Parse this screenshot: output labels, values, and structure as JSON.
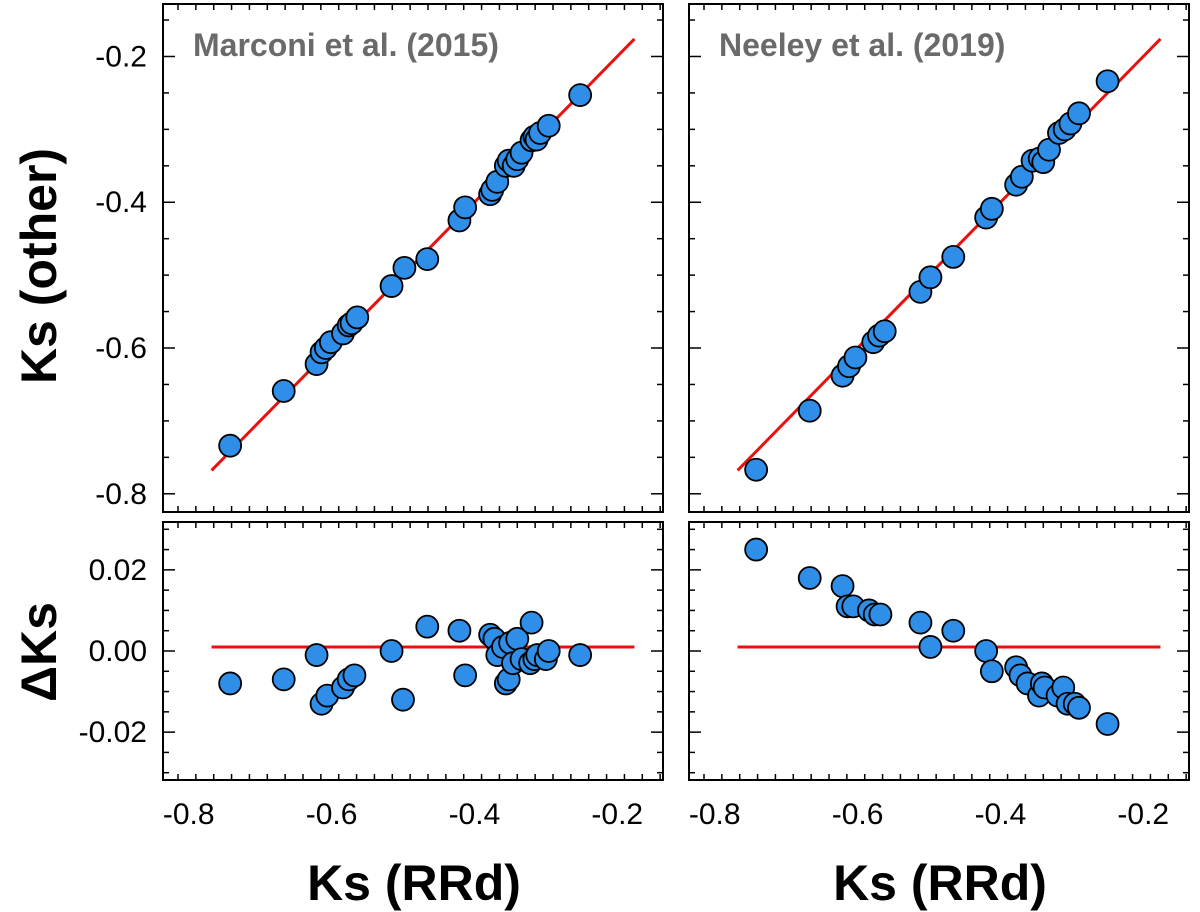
{
  "colors": {
    "point_fill": "#2f8ee8",
    "point_stroke": "#000000",
    "line": "#e8110f",
    "title_text": "#6a6a6a",
    "frame": "#000000"
  },
  "chart_data": [
    {
      "panel": "top-left",
      "type": "scatter",
      "title": "Marconi et al. (2015)",
      "xlabel": "",
      "ylabel": "Ks (other)",
      "xlim": [
        -0.836,
        -0.136
      ],
      "ylim": [
        -0.825,
        -0.128
      ],
      "yticks": [
        -0.8,
        -0.6,
        -0.4,
        -0.2
      ],
      "ytick_labels": [
        "-0.8",
        "-0.6",
        "-0.4",
        "-0.2"
      ],
      "line": {
        "x": [
          -0.768,
          -0.176
        ],
        "y": [
          -0.768,
          -0.176
        ]
      },
      "x": [
        -0.742,
        -0.667,
        -0.621,
        -0.614,
        -0.608,
        -0.601,
        -0.584,
        -0.576,
        -0.572,
        -0.564,
        -0.516,
        -0.498,
        -0.466,
        -0.421,
        -0.413,
        -0.378,
        -0.375,
        -0.368,
        -0.356,
        -0.352,
        -0.345,
        -0.34,
        -0.334,
        -0.32,
        -0.316,
        -0.313,
        -0.308,
        -0.296,
        -0.252
      ],
      "y": [
        -0.734,
        -0.659,
        -0.622,
        -0.606,
        -0.6,
        -0.592,
        -0.58,
        -0.569,
        -0.566,
        -0.558,
        -0.515,
        -0.49,
        -0.478,
        -0.425,
        -0.407,
        -0.389,
        -0.383,
        -0.372,
        -0.35,
        -0.343,
        -0.35,
        -0.341,
        -0.332,
        -0.315,
        -0.31,
        -0.314,
        -0.305,
        -0.295,
        -0.253
      ]
    },
    {
      "panel": "top-right",
      "type": "scatter",
      "title": "Neeley et al. (2019)",
      "xlabel": "",
      "ylabel": "",
      "xlim": [
        -0.836,
        -0.136
      ],
      "ylim": [
        -0.825,
        -0.128
      ],
      "yticks": [
        -0.8,
        -0.6,
        -0.4,
        -0.2
      ],
      "ytick_labels": [
        "",
        "",
        "",
        ""
      ],
      "line": {
        "x": [
          -0.768,
          -0.176
        ],
        "y": [
          -0.768,
          -0.176
        ]
      },
      "x": [
        -0.742,
        -0.667,
        -0.621,
        -0.612,
        -0.603,
        -0.578,
        -0.57,
        -0.562,
        -0.512,
        -0.498,
        -0.466,
        -0.42,
        -0.412,
        -0.378,
        -0.37,
        -0.355,
        -0.345,
        -0.34,
        -0.332,
        -0.318,
        -0.31,
        -0.302,
        -0.29,
        -0.25
      ],
      "y": [
        -0.767,
        -0.686,
        -0.638,
        -0.625,
        -0.613,
        -0.592,
        -0.583,
        -0.577,
        -0.523,
        -0.503,
        -0.475,
        -0.421,
        -0.409,
        -0.376,
        -0.365,
        -0.343,
        -0.34,
        -0.345,
        -0.328,
        -0.305,
        -0.3,
        -0.292,
        -0.278,
        -0.234
      ]
    },
    {
      "panel": "bottom-left",
      "type": "scatter",
      "title": "",
      "xlabel": "Ks (RRd)",
      "ylabel": "ΔKs",
      "xlim": [
        -0.836,
        -0.136
      ],
      "ylim": [
        -0.0318,
        0.0318
      ],
      "xticks": [
        -0.8,
        -0.6,
        -0.4,
        -0.2
      ],
      "xtick_labels": [
        "-0.8",
        "-0.6",
        "-0.4",
        "-0.2"
      ],
      "yticks": [
        -0.02,
        0.0,
        0.02
      ],
      "ytick_labels": [
        "-0.02",
        "0.00",
        "0.02"
      ],
      "line": {
        "x": [
          -0.768,
          -0.176
        ],
        "y": [
          0.001,
          0.001
        ]
      },
      "x": [
        -0.742,
        -0.667,
        -0.621,
        -0.614,
        -0.606,
        -0.584,
        -0.576,
        -0.568,
        -0.516,
        -0.5,
        -0.466,
        -0.421,
        -0.413,
        -0.378,
        -0.372,
        -0.368,
        -0.36,
        -0.356,
        -0.352,
        -0.35,
        -0.346,
        -0.34,
        -0.334,
        -0.322,
        -0.32,
        -0.316,
        -0.312,
        -0.3,
        -0.296,
        -0.252
      ],
      "y": [
        -0.008,
        -0.007,
        -0.001,
        -0.013,
        -0.011,
        -0.009,
        -0.007,
        -0.006,
        0.0,
        -0.012,
        0.006,
        0.005,
        -0.006,
        0.004,
        0.003,
        -0.001,
        0.001,
        -0.008,
        -0.007,
        0.002,
        -0.003,
        0.003,
        -0.002,
        -0.003,
        0.007,
        -0.002,
        -0.001,
        -0.002,
        0.0,
        -0.001
      ]
    },
    {
      "panel": "bottom-right",
      "type": "scatter",
      "title": "",
      "xlabel": "Ks (RRd)",
      "ylabel": "",
      "xlim": [
        -0.836,
        -0.136
      ],
      "ylim": [
        -0.0318,
        0.0318
      ],
      "xticks": [
        -0.8,
        -0.6,
        -0.4,
        -0.2
      ],
      "xtick_labels": [
        "-0.8",
        "-0.6",
        "-0.4",
        "-0.2"
      ],
      "yticks": [
        -0.02,
        0.0,
        0.02
      ],
      "ytick_labels": [
        "",
        "",
        ""
      ],
      "line": {
        "x": [
          -0.768,
          -0.176
        ],
        "y": [
          0.001,
          0.001
        ]
      },
      "x": [
        -0.742,
        -0.667,
        -0.621,
        -0.614,
        -0.606,
        -0.584,
        -0.576,
        -0.568,
        -0.512,
        -0.498,
        -0.466,
        -0.42,
        -0.412,
        -0.378,
        -0.372,
        -0.362,
        -0.346,
        -0.342,
        -0.338,
        -0.32,
        -0.312,
        -0.306,
        -0.296,
        -0.29,
        -0.25
      ],
      "y": [
        0.025,
        0.018,
        0.016,
        0.011,
        0.011,
        0.01,
        0.009,
        0.009,
        0.007,
        0.001,
        0.005,
        0.0,
        -0.005,
        -0.004,
        -0.006,
        -0.008,
        -0.011,
        -0.008,
        -0.009,
        -0.011,
        -0.009,
        -0.013,
        -0.013,
        -0.014,
        -0.018
      ]
    }
  ]
}
